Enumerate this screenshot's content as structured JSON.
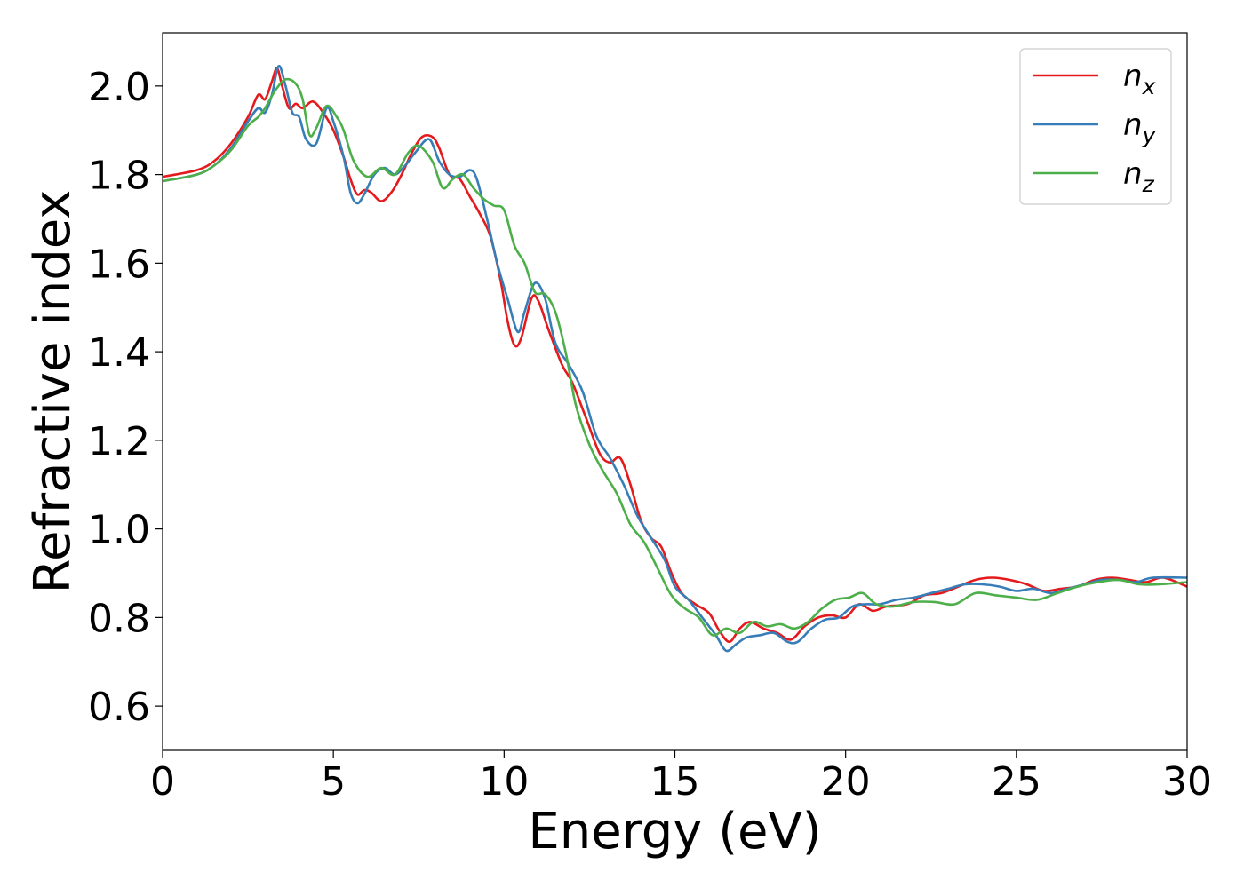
{
  "chart_data": {
    "type": "line",
    "title": "",
    "xlabel": "Energy (eV)",
    "ylabel": "Refractive index",
    "xlim": [
      0,
      30
    ],
    "ylim": [
      0.5,
      2.12
    ],
    "xticks": [
      0,
      5,
      10,
      15,
      20,
      25,
      30
    ],
    "xtick_labels": [
      "0",
      "5",
      "10",
      "15",
      "20",
      "25",
      "30"
    ],
    "yticks": [
      0.6,
      0.8,
      1.0,
      1.2,
      1.4,
      1.6,
      1.8,
      2.0
    ],
    "ytick_labels": [
      "0.6",
      "0.8",
      "1.0",
      "1.2",
      "1.4",
      "1.6",
      "1.8",
      "2.0"
    ],
    "grid": false,
    "legend_position": "top-right",
    "series": [
      {
        "name": "n_x",
        "base": "n",
        "sub": "x",
        "color": "#e41a1c",
        "x": [
          0,
          1,
          1.5,
          2,
          2.5,
          2.8,
          3.0,
          3.2,
          3.35,
          3.5,
          3.7,
          3.9,
          4.1,
          4.4,
          4.7,
          5.0,
          5.3,
          5.5,
          5.7,
          5.9,
          6.1,
          6.4,
          6.7,
          7.0,
          7.3,
          7.6,
          7.9,
          8.1,
          8.4,
          8.7,
          9.0,
          9.3,
          9.6,
          9.9,
          10.1,
          10.3,
          10.5,
          10.8,
          11.0,
          11.3,
          11.7,
          12.0,
          12.4,
          12.8,
          13.1,
          13.4,
          13.7,
          14.0,
          14.3,
          14.6,
          14.9,
          15.2,
          15.6,
          16.0,
          16.3,
          16.6,
          16.9,
          17.2,
          17.6,
          18.0,
          18.4,
          18.8,
          19.2,
          19.6,
          20.0,
          20.4,
          20.8,
          21.2,
          21.8,
          22.3,
          22.8,
          23.3,
          23.8,
          24.3,
          24.8,
          25.3,
          25.8,
          26.3,
          26.8,
          27.3,
          27.8,
          28.3,
          28.8,
          29.3,
          30
        ],
        "y": [
          1.795,
          1.81,
          1.83,
          1.87,
          1.93,
          1.98,
          1.97,
          2.01,
          2.04,
          2.0,
          1.95,
          1.96,
          1.95,
          1.965,
          1.94,
          1.9,
          1.84,
          1.79,
          1.755,
          1.765,
          1.76,
          1.74,
          1.76,
          1.8,
          1.85,
          1.885,
          1.885,
          1.86,
          1.8,
          1.79,
          1.75,
          1.71,
          1.66,
          1.56,
          1.47,
          1.415,
          1.43,
          1.52,
          1.515,
          1.45,
          1.37,
          1.33,
          1.25,
          1.17,
          1.15,
          1.16,
          1.1,
          1.02,
          0.98,
          0.96,
          0.9,
          0.855,
          0.83,
          0.81,
          0.77,
          0.745,
          0.775,
          0.79,
          0.775,
          0.765,
          0.75,
          0.78,
          0.8,
          0.805,
          0.8,
          0.83,
          0.815,
          0.825,
          0.83,
          0.85,
          0.855,
          0.87,
          0.885,
          0.89,
          0.885,
          0.875,
          0.86,
          0.865,
          0.87,
          0.885,
          0.89,
          0.885,
          0.88,
          0.89,
          0.87
        ]
      },
      {
        "name": "n_y",
        "base": "n",
        "sub": "y",
        "color": "#377eb8",
        "x": [
          0,
          1,
          1.5,
          2,
          2.5,
          2.8,
          3.0,
          3.2,
          3.4,
          3.6,
          3.8,
          4.0,
          4.2,
          4.5,
          4.8,
          5.0,
          5.3,
          5.5,
          5.7,
          5.9,
          6.2,
          6.5,
          6.8,
          7.1,
          7.4,
          7.8,
          8.1,
          8.4,
          8.7,
          9.0,
          9.2,
          9.5,
          9.8,
          10.1,
          10.4,
          10.6,
          10.9,
          11.2,
          11.5,
          11.9,
          12.3,
          12.7,
          13.1,
          13.5,
          13.9,
          14.3,
          14.7,
          15.0,
          15.4,
          15.8,
          16.2,
          16.5,
          16.8,
          17.1,
          17.5,
          17.9,
          18.3,
          18.6,
          19.0,
          19.4,
          19.8,
          20.2,
          20.6,
          21.0,
          21.5,
          22.0,
          22.5,
          23.0,
          23.5,
          24.0,
          24.5,
          25.0,
          25.5,
          26.0,
          26.5,
          27.0,
          27.5,
          28.0,
          28.5,
          29.0,
          30
        ],
        "y": [
          1.785,
          1.8,
          1.82,
          1.86,
          1.92,
          1.95,
          1.94,
          1.98,
          2.045,
          2.0,
          1.94,
          1.93,
          1.88,
          1.87,
          1.95,
          1.92,
          1.84,
          1.76,
          1.735,
          1.755,
          1.8,
          1.815,
          1.8,
          1.82,
          1.85,
          1.88,
          1.83,
          1.8,
          1.795,
          1.81,
          1.79,
          1.7,
          1.6,
          1.52,
          1.445,
          1.49,
          1.555,
          1.52,
          1.42,
          1.37,
          1.31,
          1.21,
          1.16,
          1.1,
          1.03,
          0.98,
          0.93,
          0.87,
          0.84,
          0.8,
          0.76,
          0.725,
          0.74,
          0.755,
          0.76,
          0.765,
          0.745,
          0.745,
          0.775,
          0.795,
          0.8,
          0.825,
          0.83,
          0.83,
          0.84,
          0.845,
          0.855,
          0.865,
          0.875,
          0.875,
          0.87,
          0.86,
          0.865,
          0.855,
          0.865,
          0.875,
          0.885,
          0.885,
          0.88,
          0.89,
          0.89
        ]
      },
      {
        "name": "n_z",
        "base": "n",
        "sub": "z",
        "color": "#4daf4a",
        "x": [
          0,
          1,
          1.5,
          2,
          2.5,
          2.8,
          3.0,
          3.3,
          3.6,
          3.9,
          4.1,
          4.3,
          4.5,
          4.8,
          5.1,
          5.3,
          5.6,
          6.0,
          6.4,
          6.8,
          7.2,
          7.5,
          7.9,
          8.2,
          8.5,
          8.8,
          9.1,
          9.4,
          9.7,
          10.0,
          10.3,
          10.6,
          10.9,
          11.2,
          11.5,
          11.8,
          12.1,
          12.5,
          12.9,
          13.3,
          13.7,
          14.1,
          14.5,
          14.9,
          15.3,
          15.7,
          16.1,
          16.5,
          16.9,
          17.3,
          17.7,
          18.1,
          18.5,
          18.9,
          19.3,
          19.7,
          20.1,
          20.5,
          20.9,
          21.4,
          22.0,
          22.6,
          23.2,
          23.8,
          24.4,
          25.0,
          25.6,
          26.2,
          26.8,
          27.4,
          28.0,
          28.6,
          29.2,
          30
        ],
        "y": [
          1.785,
          1.8,
          1.82,
          1.855,
          1.91,
          1.93,
          1.95,
          1.99,
          2.015,
          2.005,
          1.97,
          1.89,
          1.905,
          1.955,
          1.93,
          1.9,
          1.83,
          1.795,
          1.815,
          1.8,
          1.85,
          1.865,
          1.83,
          1.77,
          1.79,
          1.8,
          1.77,
          1.745,
          1.73,
          1.72,
          1.64,
          1.6,
          1.535,
          1.53,
          1.49,
          1.4,
          1.28,
          1.19,
          1.13,
          1.08,
          1.01,
          0.97,
          0.91,
          0.85,
          0.82,
          0.8,
          0.76,
          0.775,
          0.765,
          0.79,
          0.78,
          0.785,
          0.775,
          0.79,
          0.82,
          0.84,
          0.845,
          0.855,
          0.83,
          0.825,
          0.835,
          0.835,
          0.83,
          0.855,
          0.85,
          0.845,
          0.84,
          0.855,
          0.87,
          0.88,
          0.885,
          0.875,
          0.875,
          0.88
        ]
      }
    ]
  }
}
